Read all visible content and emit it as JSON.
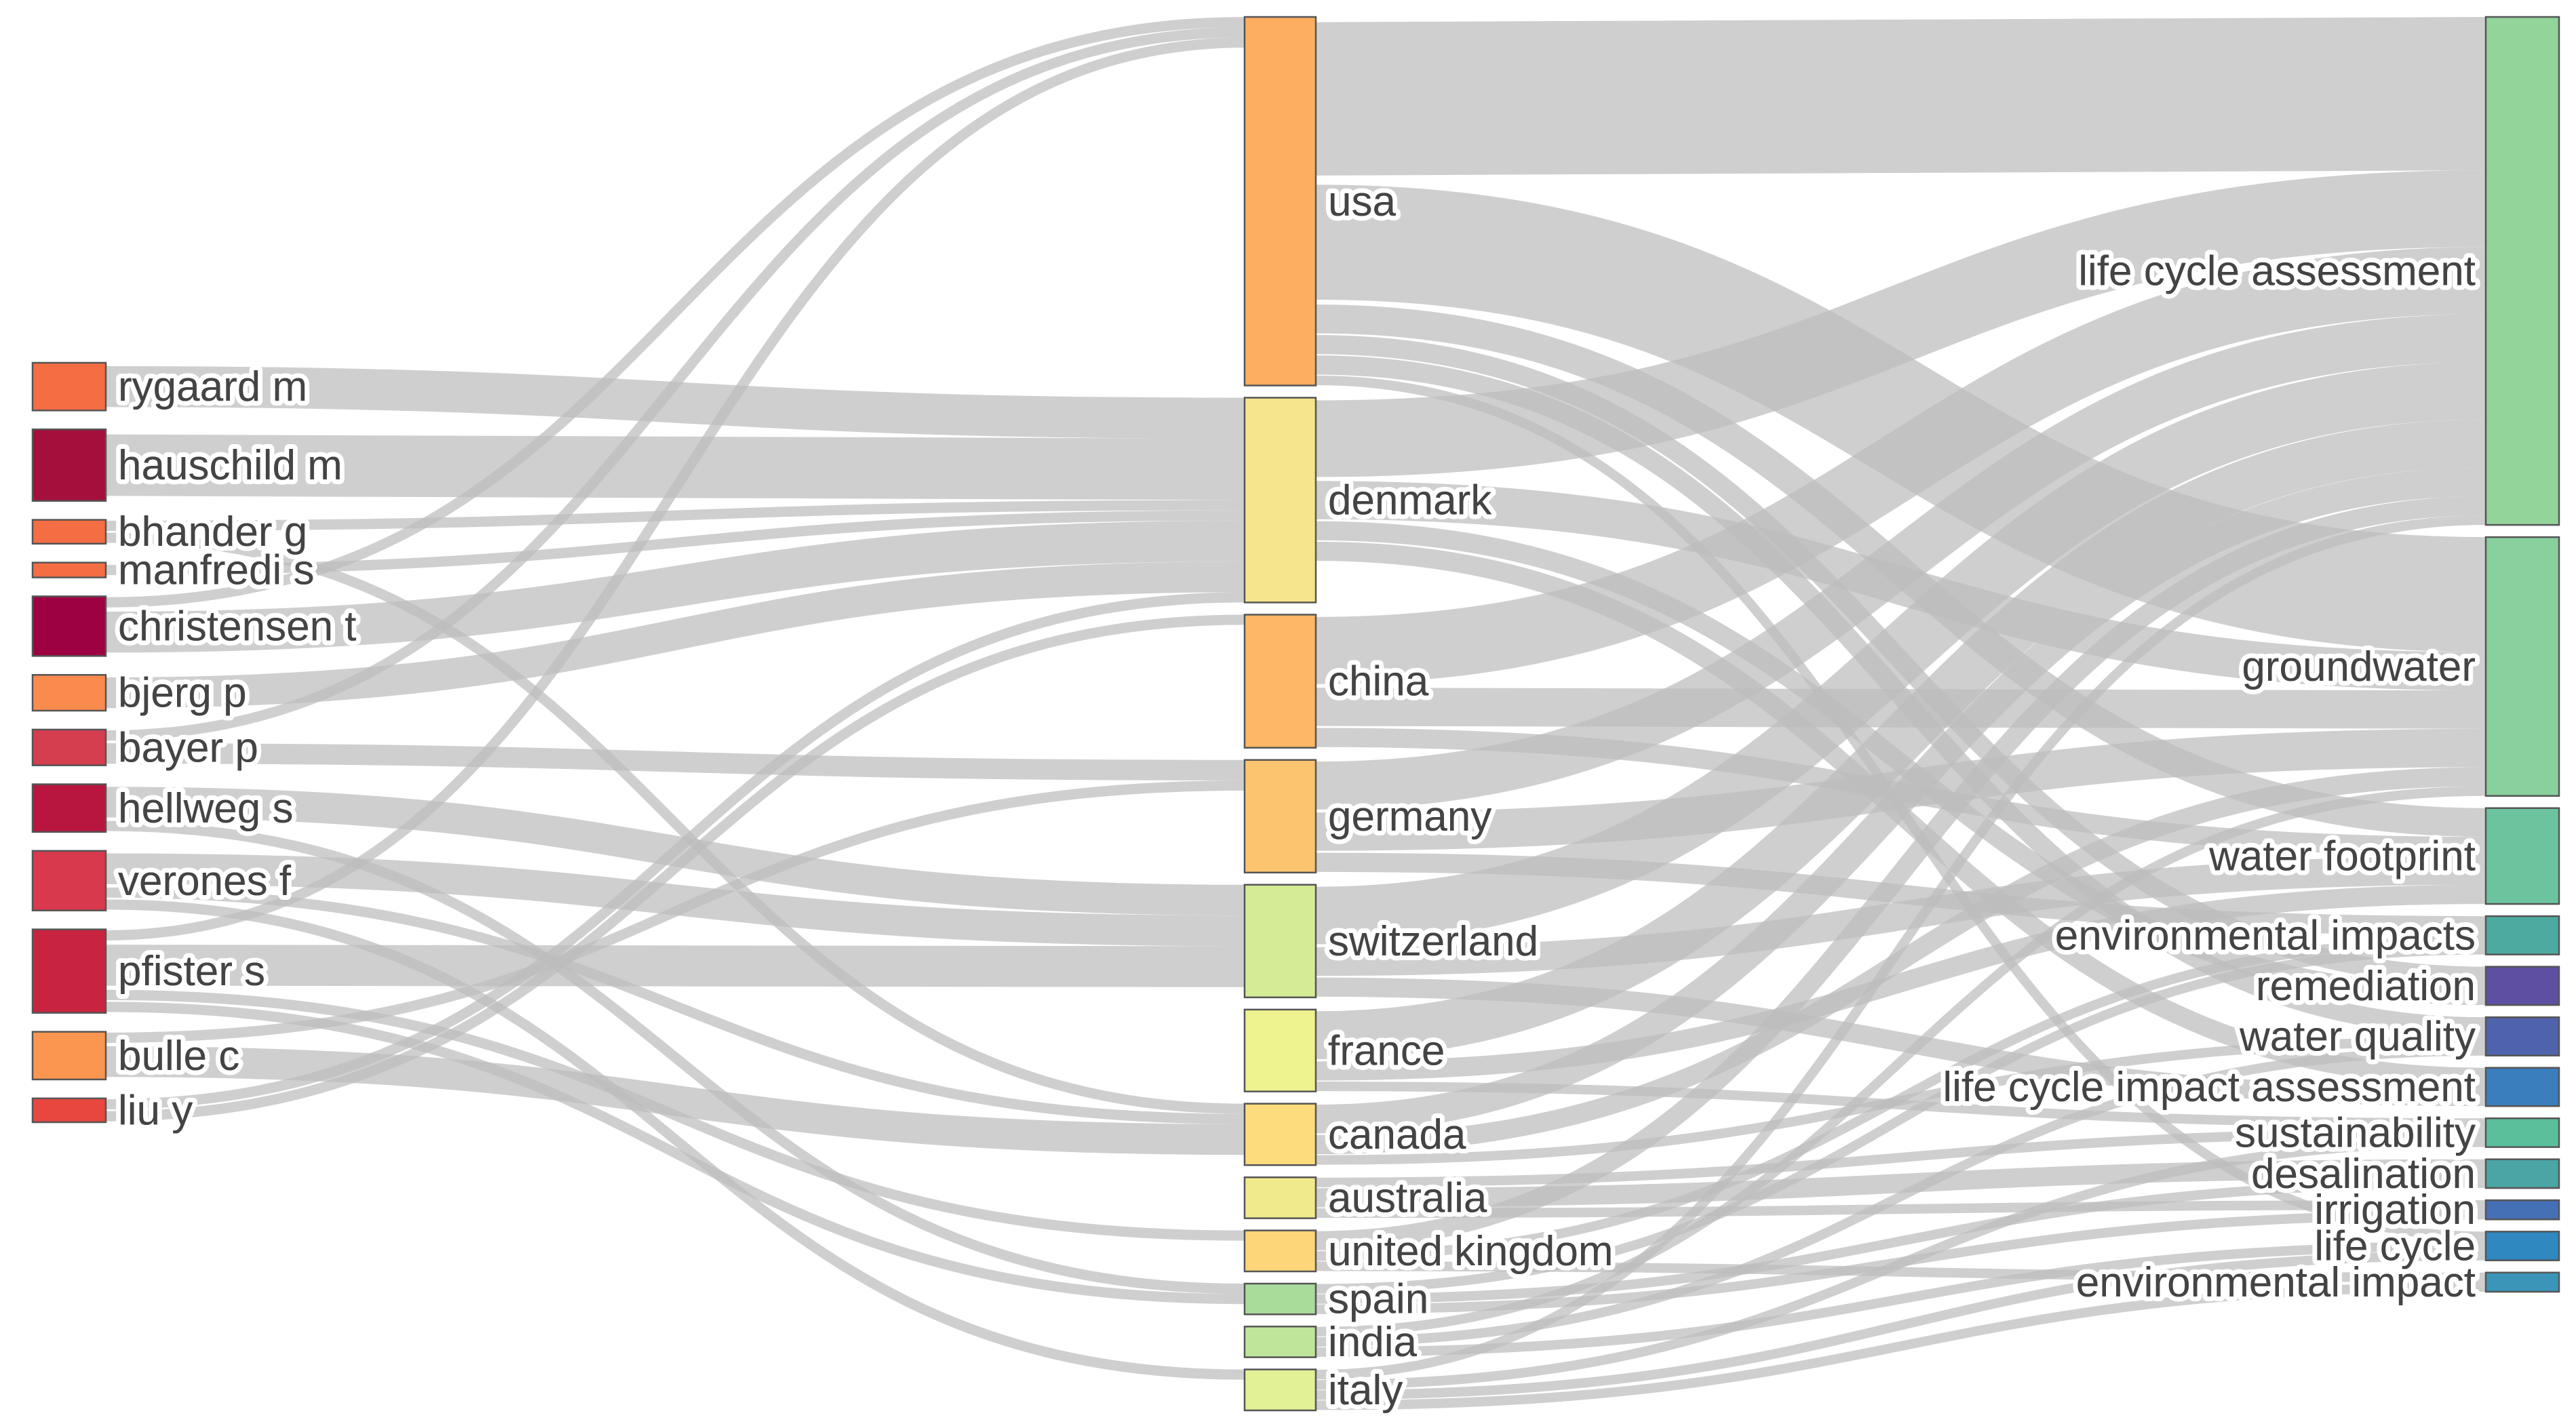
{
  "chart_data": {
    "type": "sankey",
    "title": "",
    "columns": [
      {
        "level": "author",
        "nodes": [
          {
            "id": "rygaard m",
            "label": "rygaard m",
            "color": "#f46d43"
          },
          {
            "id": "hauschild m",
            "label": "hauschild m",
            "color": "#a50f3c"
          },
          {
            "id": "bhander g",
            "label": "bhander g",
            "color": "#f46d43"
          },
          {
            "id": "manfredi s",
            "label": "manfredi s",
            "color": "#f46d43"
          },
          {
            "id": "christensen t",
            "label": "christensen t",
            "color": "#9e0142"
          },
          {
            "id": "bjerg p",
            "label": "bjerg p",
            "color": "#fb8a4e"
          },
          {
            "id": "bayer p",
            "label": "bayer p",
            "color": "#d53e4f"
          },
          {
            "id": "hellweg s",
            "label": "hellweg s",
            "color": "#b8163f"
          },
          {
            "id": "verones f",
            "label": "verones f",
            "color": "#d8394d"
          },
          {
            "id": "pfister s",
            "label": "pfister s",
            "color": "#c9243f"
          },
          {
            "id": "bulle c",
            "label": "bulle c",
            "color": "#fa9650"
          },
          {
            "id": "liu y",
            "label": "liu y",
            "color": "#e8473f"
          }
        ]
      },
      {
        "level": "country",
        "nodes": [
          {
            "id": "usa",
            "label": "usa",
            "color": "#fdae61"
          },
          {
            "id": "denmark",
            "label": "denmark",
            "color": "#f6e58d"
          },
          {
            "id": "china",
            "label": "china",
            "color": "#fdb766"
          },
          {
            "id": "germany",
            "label": "germany",
            "color": "#fdc470"
          },
          {
            "id": "switzerland",
            "label": "switzerland",
            "color": "#d4ec95"
          },
          {
            "id": "france",
            "label": "france",
            "color": "#eef28f"
          },
          {
            "id": "canada",
            "label": "canada",
            "color": "#fddc7e"
          },
          {
            "id": "australia",
            "label": "australia",
            "color": "#f0ea8c"
          },
          {
            "id": "united kingdom",
            "label": "united kingdom",
            "color": "#fdd67a"
          },
          {
            "id": "spain",
            "label": "spain",
            "color": "#a9dc9b"
          },
          {
            "id": "india",
            "label": "india",
            "color": "#bfe59a"
          },
          {
            "id": "italy",
            "label": "italy",
            "color": "#e2f096"
          }
        ]
      },
      {
        "level": "keyword",
        "nodes": [
          {
            "id": "life cycle assessment",
            "label": "life cycle assessment",
            "color": "#92d49a"
          },
          {
            "id": "groundwater",
            "label": "groundwater",
            "color": "#88d09c"
          },
          {
            "id": "water footprint",
            "label": "water footprint",
            "color": "#6cc49e"
          },
          {
            "id": "environmental impacts",
            "label": "environmental impacts",
            "color": "#4daaa0"
          },
          {
            "id": "remediation",
            "label": "remediation",
            "color": "#5e4fa2"
          },
          {
            "id": "water quality",
            "label": "water quality",
            "color": "#4f63ad"
          },
          {
            "id": "life cycle impact assessment",
            "label": "life cycle impact assessment",
            "color": "#3a7ebd"
          },
          {
            "id": "sustainability",
            "label": "sustainability",
            "color": "#5bbf9c"
          },
          {
            "id": "desalination",
            "label": "desalination",
            "color": "#4aa5a4"
          },
          {
            "id": "irrigation",
            "label": "irrigation",
            "color": "#4570b6"
          },
          {
            "id": "life cycle",
            "label": "life cycle",
            "color": "#2f88c0"
          },
          {
            "id": "environmental impact",
            "label": "environmental impact",
            "color": "#3a95b8"
          }
        ]
      }
    ],
    "links": [
      {
        "source": "rygaard m",
        "target": "denmark",
        "value": 4
      },
      {
        "source": "hauschild m",
        "target": "denmark",
        "value": 6
      },
      {
        "source": "bhander g",
        "target": "denmark",
        "value": 1
      },
      {
        "source": "bhander g",
        "target": "canada",
        "value": 1
      },
      {
        "source": "manfredi s",
        "target": "denmark",
        "value": 1
      },
      {
        "source": "christensen t",
        "target": "denmark",
        "value": 4
      },
      {
        "source": "christensen t",
        "target": "usa",
        "value": 1
      },
      {
        "source": "bjerg p",
        "target": "denmark",
        "value": 3
      },
      {
        "source": "bayer p",
        "target": "germany",
        "value": 2
      },
      {
        "source": "bayer p",
        "target": "usa",
        "value": 1
      },
      {
        "source": "hellweg s",
        "target": "switzerland",
        "value": 3
      },
      {
        "source": "hellweg s",
        "target": "spain",
        "value": 1
      },
      {
        "source": "verones f",
        "target": "switzerland",
        "value": 3
      },
      {
        "source": "verones f",
        "target": "canada",
        "value": 1
      },
      {
        "source": "verones f",
        "target": "italy",
        "value": 1
      },
      {
        "source": "pfister s",
        "target": "switzerland",
        "value": 4
      },
      {
        "source": "pfister s",
        "target": "usa",
        "value": 1
      },
      {
        "source": "pfister s",
        "target": "spain",
        "value": 1
      },
      {
        "source": "pfister s",
        "target": "united kingdom",
        "value": 1
      },
      {
        "source": "bulle c",
        "target": "canada",
        "value": 3
      },
      {
        "source": "bulle c",
        "target": "germany",
        "value": 1
      },
      {
        "source": "liu y",
        "target": "china",
        "value": 1
      },
      {
        "source": "liu y",
        "target": "denmark",
        "value": 1
      },
      {
        "source": "usa",
        "target": "life cycle assessment",
        "value": 16
      },
      {
        "source": "usa",
        "target": "groundwater",
        "value": 12
      },
      {
        "source": "usa",
        "target": "water footprint",
        "value": 3
      },
      {
        "source": "usa",
        "target": "remediation",
        "value": 2
      },
      {
        "source": "usa",
        "target": "water quality",
        "value": 2
      },
      {
        "source": "usa",
        "target": "life cycle",
        "value": 1
      },
      {
        "source": "denmark",
        "target": "life cycle assessment",
        "value": 8
      },
      {
        "source": "denmark",
        "target": "groundwater",
        "value": 4
      },
      {
        "source": "denmark",
        "target": "remediation",
        "value": 2
      },
      {
        "source": "denmark",
        "target": "life cycle impact assessment",
        "value": 2
      },
      {
        "source": "china",
        "target": "life cycle assessment",
        "value": 7
      },
      {
        "source": "china",
        "target": "groundwater",
        "value": 4
      },
      {
        "source": "china",
        "target": "water footprint",
        "value": 2
      },
      {
        "source": "germany",
        "target": "life cycle assessment",
        "value": 5
      },
      {
        "source": "germany",
        "target": "groundwater",
        "value": 4
      },
      {
        "source": "germany",
        "target": "environmental impacts",
        "value": 2
      },
      {
        "source": "switzerland",
        "target": "life cycle assessment",
        "value": 6
      },
      {
        "source": "switzerland",
        "target": "water footprint",
        "value": 3
      },
      {
        "source": "switzerland",
        "target": "life cycle impact assessment",
        "value": 2
      },
      {
        "source": "france",
        "target": "life cycle assessment",
        "value": 5
      },
      {
        "source": "france",
        "target": "water footprint",
        "value": 2
      },
      {
        "source": "france",
        "target": "sustainability",
        "value": 1
      },
      {
        "source": "canada",
        "target": "life cycle assessment",
        "value": 3
      },
      {
        "source": "canada",
        "target": "groundwater",
        "value": 2
      },
      {
        "source": "canada",
        "target": "water quality",
        "value": 1
      },
      {
        "source": "australia",
        "target": "desalination",
        "value": 2
      },
      {
        "source": "australia",
        "target": "irrigation",
        "value": 1
      },
      {
        "source": "australia",
        "target": "sustainability",
        "value": 1
      },
      {
        "source": "united kingdom",
        "target": "life cycle assessment",
        "value": 2
      },
      {
        "source": "united kingdom",
        "target": "environmental impacts",
        "value": 1
      },
      {
        "source": "united kingdom",
        "target": "environmental impact",
        "value": 1
      },
      {
        "source": "spain",
        "target": "irrigation",
        "value": 1
      },
      {
        "source": "spain",
        "target": "environmental impacts",
        "value": 1
      },
      {
        "source": "spain",
        "target": "desalination",
        "value": 1
      },
      {
        "source": "india",
        "target": "groundwater",
        "value": 1
      },
      {
        "source": "india",
        "target": "life cycle",
        "value": 1
      },
      {
        "source": "india",
        "target": "water quality",
        "value": 1
      },
      {
        "source": "italy",
        "target": "life cycle assessment",
        "value": 1
      },
      {
        "source": "italy",
        "target": "environmental impact",
        "value": 1
      },
      {
        "source": "italy",
        "target": "sustainability",
        "value": 1
      },
      {
        "source": "italy",
        "target": "life cycle",
        "value": 1
      }
    ]
  }
}
